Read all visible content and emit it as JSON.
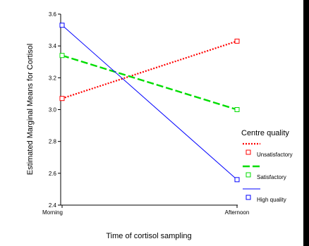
{
  "chart_data": {
    "type": "line",
    "title": "",
    "xlabel": "Time of cortisol sampling",
    "ylabel": "Estimated Marginal Means for Cortisol",
    "categories": [
      "Morning",
      "Afternoon"
    ],
    "ylim": [
      2.4,
      3.6
    ],
    "yticks": [
      "2.4",
      "2.6",
      "2.8",
      "3.0",
      "3.2",
      "3.4",
      "3.6"
    ],
    "grid": false,
    "legend": {
      "title": "Centre quality",
      "position": "right"
    },
    "series": [
      {
        "name": "Unsatisfactory",
        "values": [
          3.07,
          3.43
        ],
        "color": "#ff0000",
        "line_style": "dotted",
        "marker": "open-square"
      },
      {
        "name": "Satisfactory",
        "values": [
          3.34,
          3.0
        ],
        "color": "#00dd00",
        "line_style": "dashed",
        "marker": "open-square"
      },
      {
        "name": "High quality",
        "values": [
          3.53,
          2.56
        ],
        "color": "#0000ff",
        "line_style": "solid",
        "marker": "open-square"
      }
    ]
  }
}
